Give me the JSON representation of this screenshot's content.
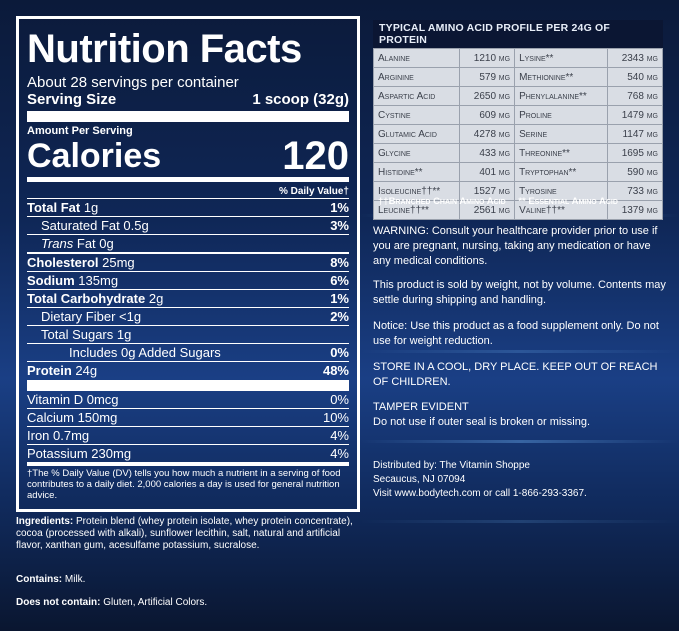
{
  "nutrition": {
    "title": "Nutrition Facts",
    "servings": "About 28 servings per container",
    "serving_size_label": "Serving Size",
    "serving_size_value": "1 scoop (32g)",
    "amount_per_serving": "Amount Per Serving",
    "calories_label": "Calories",
    "calories_value": "120",
    "dv_header": "% Daily Value†",
    "rows": [
      {
        "name": "Total Fat",
        "amount": "1g",
        "dv": "1%"
      },
      {
        "name": "Saturated Fat",
        "amount": "0.5g",
        "dv": "3%"
      },
      {
        "name": "Trans",
        "amount": "Fat 0g",
        "dv": ""
      },
      {
        "name": "Cholesterol",
        "amount": "25mg",
        "dv": "8%"
      },
      {
        "name": "Sodium",
        "amount": "135mg",
        "dv": "6%"
      },
      {
        "name": "Total Carbohydrate",
        "amount": "2g",
        "dv": "1%"
      },
      {
        "name": "Dietary Fiber",
        "amount": "<1g",
        "dv": "2%"
      },
      {
        "name": "Total Sugars",
        "amount": "1g",
        "dv": ""
      },
      {
        "name": "Includes 0g Added Sugars",
        "amount": "",
        "dv": "0%"
      },
      {
        "name": "Protein",
        "amount": "24g",
        "dv": "48%"
      }
    ],
    "vitamins": [
      {
        "name": "Vitamin D 0mcg",
        "dv": "0%"
      },
      {
        "name": "Calcium 150mg",
        "dv": "10%"
      },
      {
        "name": "Iron 0.7mg",
        "dv": "4%"
      },
      {
        "name": "Potassium 230mg",
        "dv": "4%"
      }
    ],
    "footnote": "†The % Daily Value (DV) tells you how much a nutrient in a serving of food contributes to a daily diet. 2,000 calories a day is used for general nutrition advice."
  },
  "ingredients": {
    "label": "Ingredients:",
    "text": "Protein blend (whey protein isolate, whey protein concentrate), cocoa (processed with alkali), sunflower lecithin, salt, natural and artificial flavor, xanthan gum, acesulfame potassium, sucralose."
  },
  "contains": {
    "label": "Contains:",
    "text": "Milk."
  },
  "does_not_contain": {
    "label": "Does not contain:",
    "text": "Gluten, Artificial Colors."
  },
  "amino": {
    "title": "Typical Amino Acid Profile per 24g of Protein",
    "rows": [
      [
        "Alanine",
        "1210 mg",
        "Lysine**",
        "2343 mg"
      ],
      [
        "Arginine",
        "579 mg",
        "Methionine**",
        "540 mg"
      ],
      [
        "Aspartic Acid",
        "2650 mg",
        "Phenylalanine**",
        "768 mg"
      ],
      [
        "Cystine",
        "609 mg",
        "Proline",
        "1479 mg"
      ],
      [
        "Glutamic Acid",
        "4278 mg",
        "Serine",
        "1147 mg"
      ],
      [
        "Glycine",
        "433 mg",
        "Threonine**",
        "1695 mg"
      ],
      [
        "Histidine**",
        "401 mg",
        "Tryptophan**",
        "590 mg"
      ],
      [
        "Isoleucine††**",
        "1527 mg",
        "Tyrosine",
        "733 mg"
      ],
      [
        "Leucine††**",
        "2561 mg",
        "Valine††**",
        "1379 mg"
      ]
    ],
    "footnote_bcaa": "††Branched Chain Amino Acid",
    "footnote_essential": "** Essential Amino Acid"
  },
  "notices": {
    "warning": "WARNING: Consult your healthcare provider prior to use if you are pregnant, nursing, taking any medication or have any medical conditions.",
    "sold_by": "This product is sold by weight, not by volume. Contents may settle during shipping and handling.",
    "supplement": "Notice: Use this product as a food supplement only. Do not use for weight reduction.",
    "storage": "STORE IN A COOL, DRY PLACE. KEEP OUT OF REACH OF CHILDREN.",
    "tamper_title": "TAMPER EVIDENT",
    "tamper_text": "Do not use if outer seal is broken or missing.",
    "dist_1": "Distributed by: The Vitamin Shoppe",
    "dist_2": "Secaucus, NJ 07094",
    "dist_3": "Visit www.bodytech.com or call 1-866-293-3367."
  }
}
